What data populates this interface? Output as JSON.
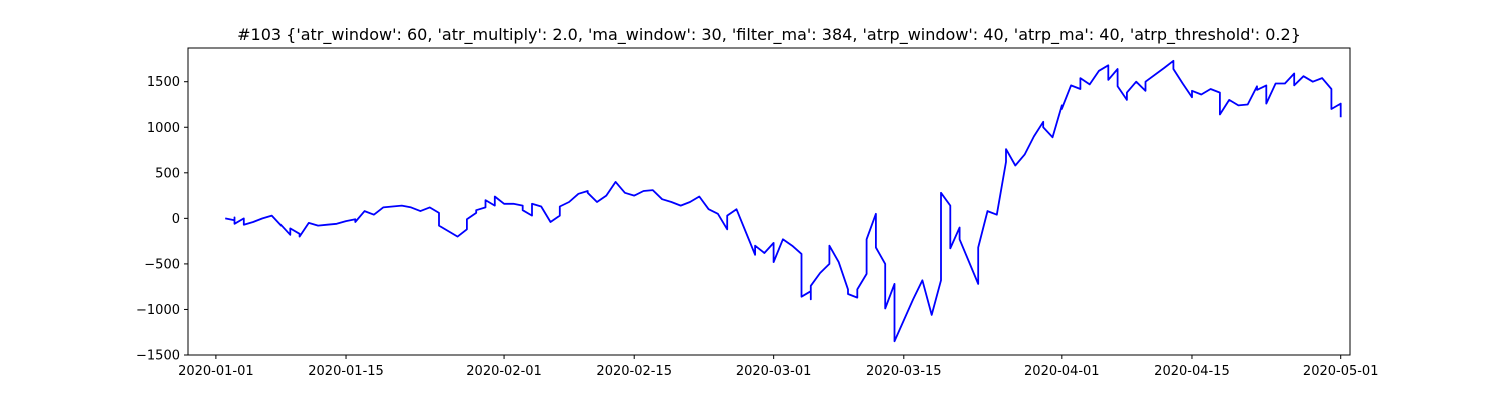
{
  "chart_data": {
    "type": "line",
    "title": "#103 {'atr_window': 60, 'atr_multiply': 2.0, 'ma_window': 30, 'filter_ma': 384, 'atrp_window': 40, 'atrp_ma': 40, 'atrp_threshold': 0.2}",
    "xlabel": "",
    "ylabel": "",
    "grid": false,
    "xlim": [
      "2019-12-29",
      "2020-05-02"
    ],
    "ylim": [
      -1500,
      1870
    ],
    "x_ticks": [
      "2020-01-01",
      "2020-01-15",
      "2020-02-01",
      "2020-02-15",
      "2020-03-01",
      "2020-03-15",
      "2020-04-01",
      "2020-04-15",
      "2020-05-01"
    ],
    "y_ticks": [
      -1500,
      -1000,
      -500,
      0,
      500,
      1000,
      1500
    ],
    "series": [
      {
        "color": "#0000ff",
        "points": [
          [
            "2020-01-02",
            0
          ],
          [
            "2020-01-03",
            -20
          ],
          [
            "2020-01-03",
            10
          ],
          [
            "2020-01-03",
            -60
          ],
          [
            "2020-01-04",
            0
          ],
          [
            "2020-01-04",
            -20
          ],
          [
            "2020-01-04",
            -70
          ],
          [
            "2020-01-05",
            -40
          ],
          [
            "2020-01-06",
            0
          ],
          [
            "2020-01-07",
            30
          ],
          [
            "2020-01-08",
            -80
          ],
          [
            "2020-01-08",
            -70
          ],
          [
            "2020-01-09",
            -180
          ],
          [
            "2020-01-09",
            -110
          ],
          [
            "2020-01-10",
            -170
          ],
          [
            "2020-01-10",
            -200
          ],
          [
            "2020-01-11",
            -50
          ],
          [
            "2020-01-12",
            -80
          ],
          [
            "2020-01-13",
            -70
          ],
          [
            "2020-01-14",
            -60
          ],
          [
            "2020-01-15",
            -30
          ],
          [
            "2020-01-16",
            -10
          ],
          [
            "2020-01-16",
            -40
          ],
          [
            "2020-01-17",
            80
          ],
          [
            "2020-01-18",
            40
          ],
          [
            "2020-01-19",
            120
          ],
          [
            "2020-01-20",
            130
          ],
          [
            "2020-01-21",
            140
          ],
          [
            "2020-01-22",
            120
          ],
          [
            "2020-01-23",
            80
          ],
          [
            "2020-01-24",
            120
          ],
          [
            "2020-01-25",
            60
          ],
          [
            "2020-01-25",
            -80
          ],
          [
            "2020-01-27",
            -200
          ],
          [
            "2020-01-28",
            -120
          ],
          [
            "2020-01-28",
            -10
          ],
          [
            "2020-01-29",
            60
          ],
          [
            "2020-01-29",
            90
          ],
          [
            "2020-01-30",
            120
          ],
          [
            "2020-01-30",
            200
          ],
          [
            "2020-01-31",
            140
          ],
          [
            "2020-01-31",
            240
          ],
          [
            "2020-02-01",
            160
          ],
          [
            "2020-02-02",
            160
          ],
          [
            "2020-02-03",
            140
          ],
          [
            "2020-02-03",
            90
          ],
          [
            "2020-02-04",
            30
          ],
          [
            "2020-02-04",
            160
          ],
          [
            "2020-02-05",
            130
          ],
          [
            "2020-02-06",
            -40
          ],
          [
            "2020-02-07",
            30
          ],
          [
            "2020-02-07",
            130
          ],
          [
            "2020-02-08",
            180
          ],
          [
            "2020-02-09",
            270
          ],
          [
            "2020-02-10",
            300
          ],
          [
            "2020-02-10",
            280
          ],
          [
            "2020-02-11",
            180
          ],
          [
            "2020-02-12",
            250
          ],
          [
            "2020-02-13",
            400
          ],
          [
            "2020-02-14",
            280
          ],
          [
            "2020-02-15",
            250
          ],
          [
            "2020-02-16",
            300
          ],
          [
            "2020-02-17",
            310
          ],
          [
            "2020-02-18",
            210
          ],
          [
            "2020-02-19",
            180
          ],
          [
            "2020-02-20",
            140
          ],
          [
            "2020-02-21",
            180
          ],
          [
            "2020-02-22",
            240
          ],
          [
            "2020-02-23",
            100
          ],
          [
            "2020-02-24",
            50
          ],
          [
            "2020-02-25",
            -120
          ],
          [
            "2020-02-25",
            30
          ],
          [
            "2020-02-26",
            100
          ],
          [
            "2020-02-27",
            -150
          ],
          [
            "2020-02-28",
            -400
          ],
          [
            "2020-02-28",
            -300
          ],
          [
            "2020-02-29",
            -380
          ],
          [
            "2020-03-01",
            -270
          ],
          [
            "2020-03-01",
            -480
          ],
          [
            "2020-03-02",
            -230
          ],
          [
            "2020-03-03",
            -300
          ],
          [
            "2020-03-04",
            -390
          ],
          [
            "2020-03-04",
            -860
          ],
          [
            "2020-03-05",
            -800
          ],
          [
            "2020-03-05",
            -890
          ],
          [
            "2020-03-05",
            -740
          ],
          [
            "2020-03-06",
            -600
          ],
          [
            "2020-03-07",
            -500
          ],
          [
            "2020-03-07",
            -300
          ],
          [
            "2020-03-08",
            -480
          ],
          [
            "2020-03-09",
            -780
          ],
          [
            "2020-03-09",
            -830
          ],
          [
            "2020-03-10",
            -870
          ],
          [
            "2020-03-10",
            -780
          ],
          [
            "2020-03-11",
            -610
          ],
          [
            "2020-03-11",
            -230
          ],
          [
            "2020-03-12",
            50
          ],
          [
            "2020-03-12",
            -320
          ],
          [
            "2020-03-13",
            -500
          ],
          [
            "2020-03-13",
            -990
          ],
          [
            "2020-03-14",
            -720
          ],
          [
            "2020-03-14",
            -1350
          ],
          [
            "2020-03-16",
            -890
          ],
          [
            "2020-03-17",
            -680
          ],
          [
            "2020-03-18",
            -1060
          ],
          [
            "2020-03-19",
            -680
          ],
          [
            "2020-03-19",
            280
          ],
          [
            "2020-03-20",
            140
          ],
          [
            "2020-03-20",
            -330
          ],
          [
            "2020-03-21",
            -100
          ],
          [
            "2020-03-21",
            -230
          ],
          [
            "2020-03-23",
            -720
          ],
          [
            "2020-03-23",
            -320
          ],
          [
            "2020-03-24",
            80
          ],
          [
            "2020-03-25",
            40
          ],
          [
            "2020-03-25",
            40
          ],
          [
            "2020-03-26",
            620
          ],
          [
            "2020-03-26",
            760
          ],
          [
            "2020-03-27",
            580
          ],
          [
            "2020-03-28",
            700
          ],
          [
            "2020-03-29",
            900
          ],
          [
            "2020-03-30",
            1060
          ],
          [
            "2020-03-30",
            1000
          ],
          [
            "2020-03-31",
            890
          ],
          [
            "2020-04-01",
            1240
          ],
          [
            "2020-04-01",
            1200
          ],
          [
            "2020-04-02",
            1460
          ],
          [
            "2020-04-03",
            1420
          ],
          [
            "2020-04-03",
            1540
          ],
          [
            "2020-04-04",
            1470
          ],
          [
            "2020-04-05",
            1620
          ],
          [
            "2020-04-06",
            1680
          ],
          [
            "2020-04-06",
            1520
          ],
          [
            "2020-04-07",
            1640
          ],
          [
            "2020-04-07",
            1450
          ],
          [
            "2020-04-08",
            1300
          ],
          [
            "2020-04-08",
            1380
          ],
          [
            "2020-04-09",
            1500
          ],
          [
            "2020-04-10",
            1400
          ],
          [
            "2020-04-10",
            1500
          ],
          [
            "2020-04-12",
            1650
          ],
          [
            "2020-04-13",
            1730
          ],
          [
            "2020-04-13",
            1640
          ],
          [
            "2020-04-14",
            1480
          ],
          [
            "2020-04-15",
            1330
          ],
          [
            "2020-04-15",
            1400
          ],
          [
            "2020-04-16",
            1360
          ],
          [
            "2020-04-17",
            1420
          ],
          [
            "2020-04-18",
            1380
          ],
          [
            "2020-04-18",
            1140
          ],
          [
            "2020-04-19",
            1300
          ],
          [
            "2020-04-20",
            1240
          ],
          [
            "2020-04-21",
            1250
          ],
          [
            "2020-04-22",
            1450
          ],
          [
            "2020-04-22",
            1410
          ],
          [
            "2020-04-23",
            1460
          ],
          [
            "2020-04-23",
            1260
          ],
          [
            "2020-04-24",
            1480
          ],
          [
            "2020-04-25",
            1480
          ],
          [
            "2020-04-26",
            1590
          ],
          [
            "2020-04-26",
            1460
          ],
          [
            "2020-04-27",
            1560
          ],
          [
            "2020-04-28",
            1500
          ],
          [
            "2020-04-29",
            1540
          ],
          [
            "2020-04-30",
            1420
          ],
          [
            "2020-04-30",
            1200
          ],
          [
            "2020-05-01",
            1260
          ],
          [
            "2020-05-01",
            1190
          ],
          [
            "2020-05-01",
            1110
          ]
        ]
      }
    ]
  }
}
